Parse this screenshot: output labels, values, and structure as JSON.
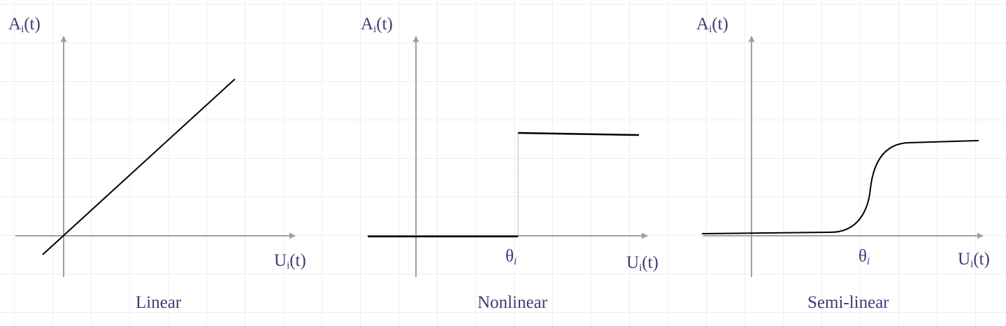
{
  "panels": [
    {
      "y_axis": {
        "symbol": "A",
        "subscript": "i",
        "arg": "(t)"
      },
      "x_axis": {
        "symbol": "U",
        "subscript": "i",
        "arg": "(t)"
      },
      "caption": "Linear"
    },
    {
      "y_axis": {
        "symbol": "A",
        "subscript": "i",
        "arg": "(t)"
      },
      "x_axis": {
        "symbol": "U",
        "subscript": "i",
        "arg": "(t)"
      },
      "threshold": {
        "symbol": "θ",
        "subscript": "i"
      },
      "caption": "Nonlinear"
    },
    {
      "y_axis": {
        "symbol": "A",
        "subscript": "i",
        "arg": "(t)"
      },
      "x_axis": {
        "symbol": "U",
        "subscript": "i",
        "arg": "(t)"
      },
      "threshold": {
        "symbol": "θ",
        "subscript": "i"
      },
      "caption": "Semi-linear"
    }
  ],
  "colors": {
    "axis": "#a0a0a0",
    "curve": "#000000",
    "text": "#3c3c78",
    "grid": "#e9eef6"
  }
}
